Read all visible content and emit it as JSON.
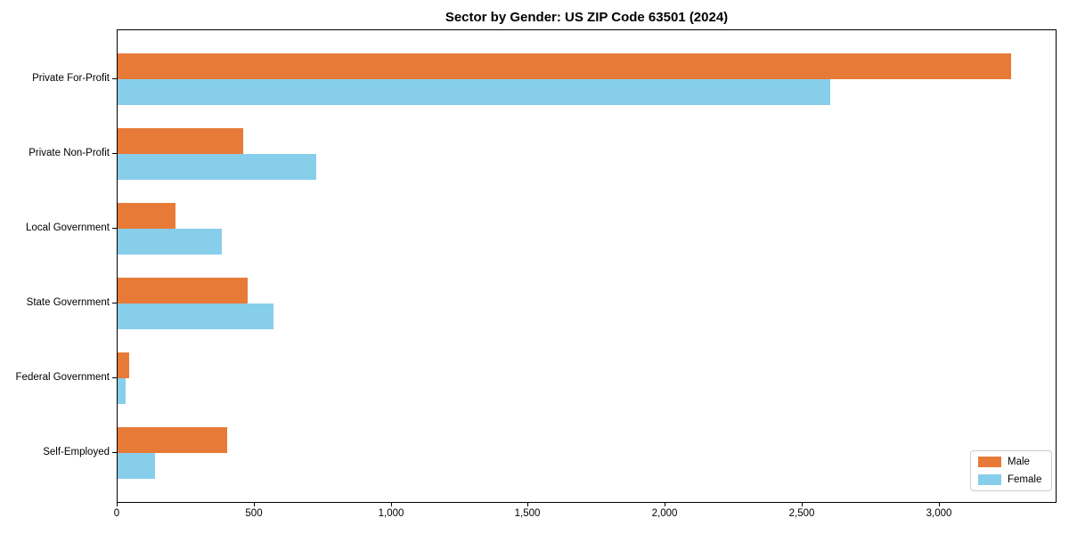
{
  "chart_data": {
    "type": "bar",
    "orientation": "horizontal",
    "title": "Sector by Gender: US ZIP Code 63501 (2024)",
    "categories": [
      "Private For-Profit",
      "Private Non-Profit",
      "Local Government",
      "State Government",
      "Federal Government",
      "Self-Employed"
    ],
    "series": [
      {
        "name": "Male",
        "color": "#e87a38",
        "values": [
          3260,
          460,
          210,
          475,
          42,
          400
        ]
      },
      {
        "name": "Female",
        "color": "#87ceeb",
        "values": [
          2600,
          725,
          380,
          570,
          30,
          135
        ]
      }
    ],
    "xlabel": "",
    "ylabel": "",
    "xlim": [
      0,
      3430
    ],
    "xticks": [
      0,
      500,
      1000,
      1500,
      2000,
      2500,
      3000
    ],
    "xtick_labels": [
      "0",
      "500",
      "1,000",
      "1,500",
      "2,000",
      "2,500",
      "3,000"
    ],
    "grid": false,
    "legend": {
      "position": "lower right",
      "entries": [
        "Male",
        "Female"
      ]
    },
    "colors": {
      "male": "#e87a38",
      "female": "#87ceeb",
      "axis": "#000000",
      "background": "#ffffff",
      "legend_border": "#cccccc"
    }
  }
}
